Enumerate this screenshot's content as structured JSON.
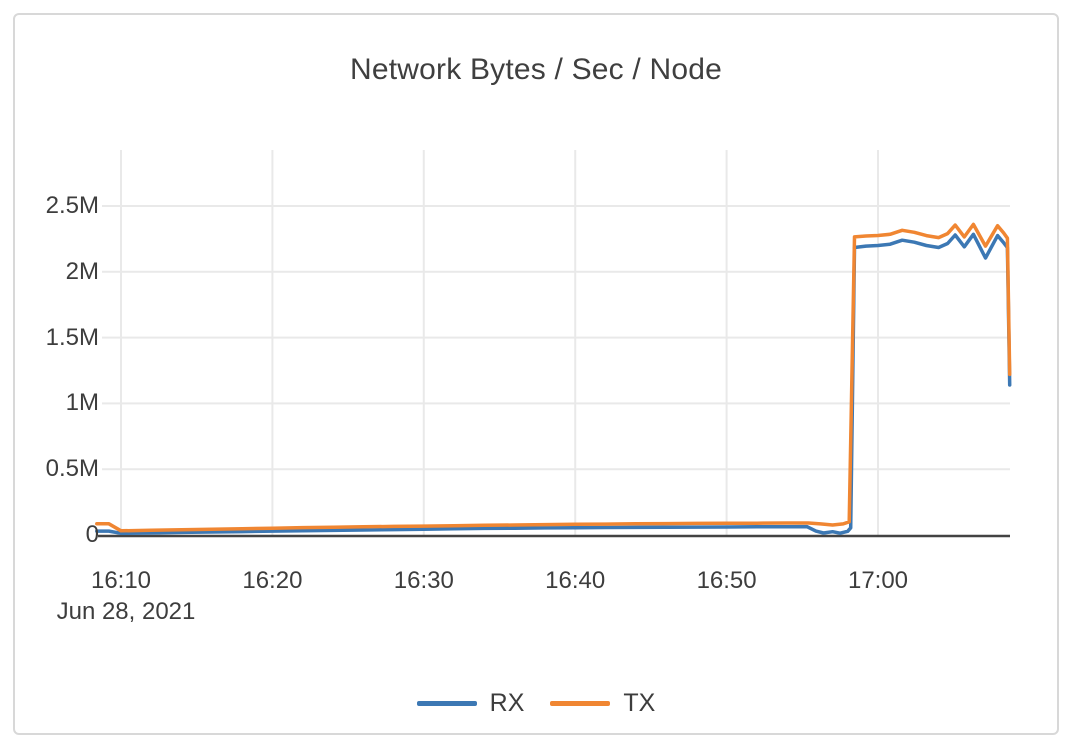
{
  "chart_data": {
    "type": "line",
    "title": "Network Bytes / Sec / Node",
    "x_axis": {
      "date_label": "Jun 28, 2021",
      "tick_labels": [
        "16:10",
        "16:20",
        "16:30",
        "16:40",
        "16:50",
        "17:00"
      ],
      "tick_minutes": [
        10,
        20,
        30,
        40,
        50,
        60
      ],
      "range_minutes": [
        8.4,
        68.8
      ],
      "grid": true
    },
    "y_axis": {
      "unit": "bytes/sec",
      "tick_labels": [
        "0",
        "0.5M",
        "1M",
        "1.5M",
        "2M",
        "2.5M"
      ],
      "tick_values": [
        0,
        500000,
        1000000,
        1500000,
        2000000,
        2500000
      ],
      "range": [
        0,
        2900000
      ],
      "grid": true
    },
    "legend_position": "bottom",
    "series": [
      {
        "name": "RX",
        "color": "#3C78B4",
        "points": [
          [
            8.4,
            30000
          ],
          [
            9.2,
            30000
          ],
          [
            10.0,
            13000
          ],
          [
            12,
            16000
          ],
          [
            14,
            20000
          ],
          [
            16,
            23000
          ],
          [
            18,
            26000
          ],
          [
            20,
            30000
          ],
          [
            22,
            32000
          ],
          [
            24,
            35000
          ],
          [
            26,
            38000
          ],
          [
            28,
            41000
          ],
          [
            30,
            44000
          ],
          [
            32,
            47000
          ],
          [
            34,
            50000
          ],
          [
            36,
            52000
          ],
          [
            38,
            54000
          ],
          [
            40,
            55500
          ],
          [
            42,
            57000
          ],
          [
            44,
            58000
          ],
          [
            46,
            59000
          ],
          [
            48,
            60000
          ],
          [
            50,
            61000
          ],
          [
            52,
            62000
          ],
          [
            54,
            63000
          ],
          [
            55.3,
            64000
          ],
          [
            55.9,
            30000
          ],
          [
            56.4,
            15000
          ],
          [
            57.0,
            25000
          ],
          [
            57.5,
            14000
          ],
          [
            58.0,
            28000
          ],
          [
            58.2,
            55000
          ],
          [
            58.45,
            2185000
          ],
          [
            59.2,
            2195000
          ],
          [
            60.0,
            2200000
          ],
          [
            60.8,
            2210000
          ],
          [
            61.6,
            2240000
          ],
          [
            62.4,
            2225000
          ],
          [
            63.2,
            2200000
          ],
          [
            64.0,
            2185000
          ],
          [
            64.6,
            2215000
          ],
          [
            65.1,
            2280000
          ],
          [
            65.7,
            2190000
          ],
          [
            66.3,
            2285000
          ],
          [
            67.1,
            2105000
          ],
          [
            67.9,
            2275000
          ],
          [
            68.3,
            2220000
          ],
          [
            68.55,
            2185000
          ],
          [
            68.7,
            1140000
          ]
        ]
      },
      {
        "name": "TX",
        "color": "#F08632",
        "points": [
          [
            8.4,
            85000
          ],
          [
            9.2,
            85000
          ],
          [
            10.0,
            32000
          ],
          [
            12,
            36000
          ],
          [
            14,
            40000
          ],
          [
            16,
            44000
          ],
          [
            18,
            48000
          ],
          [
            20,
            52000
          ],
          [
            22,
            56000
          ],
          [
            24,
            59000
          ],
          [
            26,
            62000
          ],
          [
            28,
            65000
          ],
          [
            30,
            68000
          ],
          [
            32,
            71000
          ],
          [
            34,
            74000
          ],
          [
            36,
            76000
          ],
          [
            38,
            79000
          ],
          [
            40,
            81000
          ],
          [
            42,
            83000
          ],
          [
            44,
            85000
          ],
          [
            46,
            87000
          ],
          [
            48,
            88000
          ],
          [
            50,
            89000
          ],
          [
            52,
            90000
          ],
          [
            54,
            91000
          ],
          [
            55.4,
            91000
          ],
          [
            56.2,
            84000
          ],
          [
            57.0,
            76000
          ],
          [
            57.7,
            84000
          ],
          [
            58.1,
            100000
          ],
          [
            58.45,
            2265000
          ],
          [
            59.2,
            2272000
          ],
          [
            60.0,
            2276000
          ],
          [
            60.8,
            2285000
          ],
          [
            61.6,
            2315000
          ],
          [
            62.4,
            2300000
          ],
          [
            63.2,
            2275000
          ],
          [
            64.0,
            2260000
          ],
          [
            64.6,
            2290000
          ],
          [
            65.1,
            2355000
          ],
          [
            65.7,
            2265000
          ],
          [
            66.3,
            2360000
          ],
          [
            67.1,
            2195000
          ],
          [
            67.9,
            2350000
          ],
          [
            68.3,
            2295000
          ],
          [
            68.55,
            2255000
          ],
          [
            68.7,
            1220000
          ]
        ]
      }
    ],
    "style_colors": {
      "grid_line": "#e9e9e9",
      "axis_line": "#434343",
      "text": "#3d3d3d",
      "card_border": "#d8d8d8"
    }
  }
}
